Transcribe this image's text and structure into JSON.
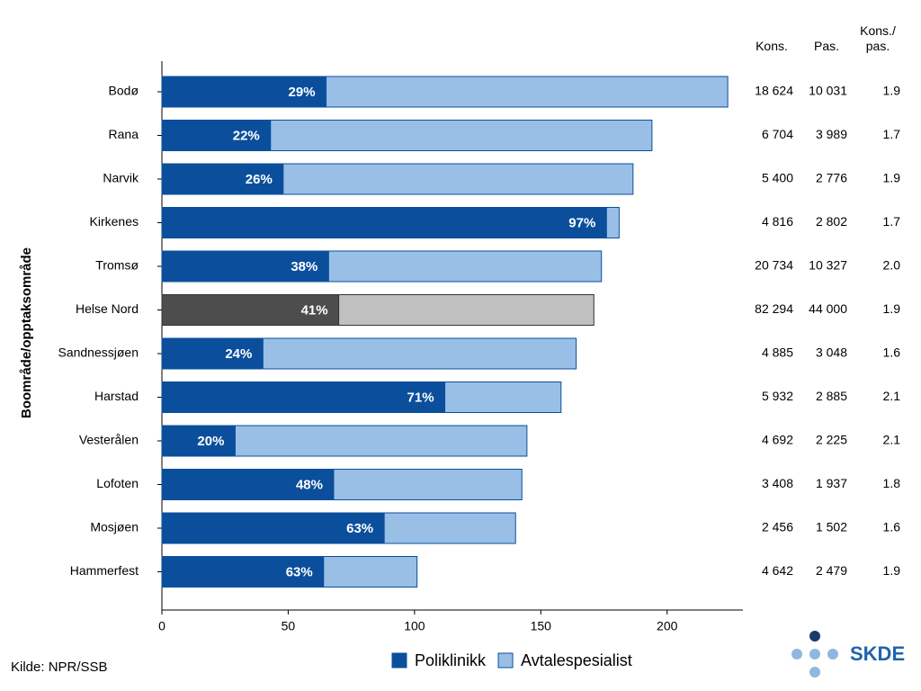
{
  "chart_data": {
    "type": "stacked-barh",
    "y_label": "Boområde/opptaksområde",
    "categories": [
      "Bodø",
      "Rana",
      "Narvik",
      "Kirkenes",
      "Tromsø",
      "Helse Nord",
      "Sandnessjøen",
      "Harstad",
      "Vesterålen",
      "Lofoten",
      "Mosjøen",
      "Hammerfest"
    ],
    "series": [
      {
        "name": "Poliklinikk",
        "color": "#0b4f9c",
        "values": [
          65,
          43,
          48,
          176,
          66,
          70,
          40,
          112,
          29,
          68,
          88,
          64
        ]
      },
      {
        "name": "Avtalespesialist",
        "color": "#99bfe6",
        "values": [
          159,
          151,
          138.5,
          5,
          108,
          101,
          124,
          46,
          115.5,
          74.5,
          52,
          37
        ]
      }
    ],
    "share_labels": [
      "29%",
      "22%",
      "26%",
      "97%",
      "38%",
      "41%",
      "24%",
      "71%",
      "20%",
      "48%",
      "63%",
      "63%"
    ],
    "highlight": {
      "category": "Helse Nord",
      "colors": [
        "#4d4d4d",
        "#c0c0c0"
      ]
    },
    "xlim": [
      0,
      230
    ],
    "xticks": [
      0,
      50,
      100,
      150,
      200
    ],
    "legend": "bottom",
    "table": {
      "columns": [
        "Kons.",
        "Pas.",
        "Kons./\npas."
      ],
      "rows": [
        [
          "18 624",
          "10 031",
          "1.9"
        ],
        [
          "6 704",
          "3 989",
          "1.7"
        ],
        [
          "5 400",
          "2 776",
          "1.9"
        ],
        [
          "4 816",
          "2 802",
          "1.7"
        ],
        [
          "20 734",
          "10 327",
          "2.0"
        ],
        [
          "82 294",
          "44 000",
          "1.9"
        ],
        [
          "4 885",
          "3 048",
          "1.6"
        ],
        [
          "5 932",
          "2 885",
          "2.1"
        ],
        [
          "4 692",
          "2 225",
          "2.1"
        ],
        [
          "3 408",
          "1 937",
          "1.8"
        ],
        [
          "2 456",
          "1 502",
          "1.6"
        ],
        [
          "4 642",
          "2 479",
          "1.9"
        ]
      ]
    },
    "source": "Kilde: NPR/SSB",
    "logo": "SKDE"
  }
}
